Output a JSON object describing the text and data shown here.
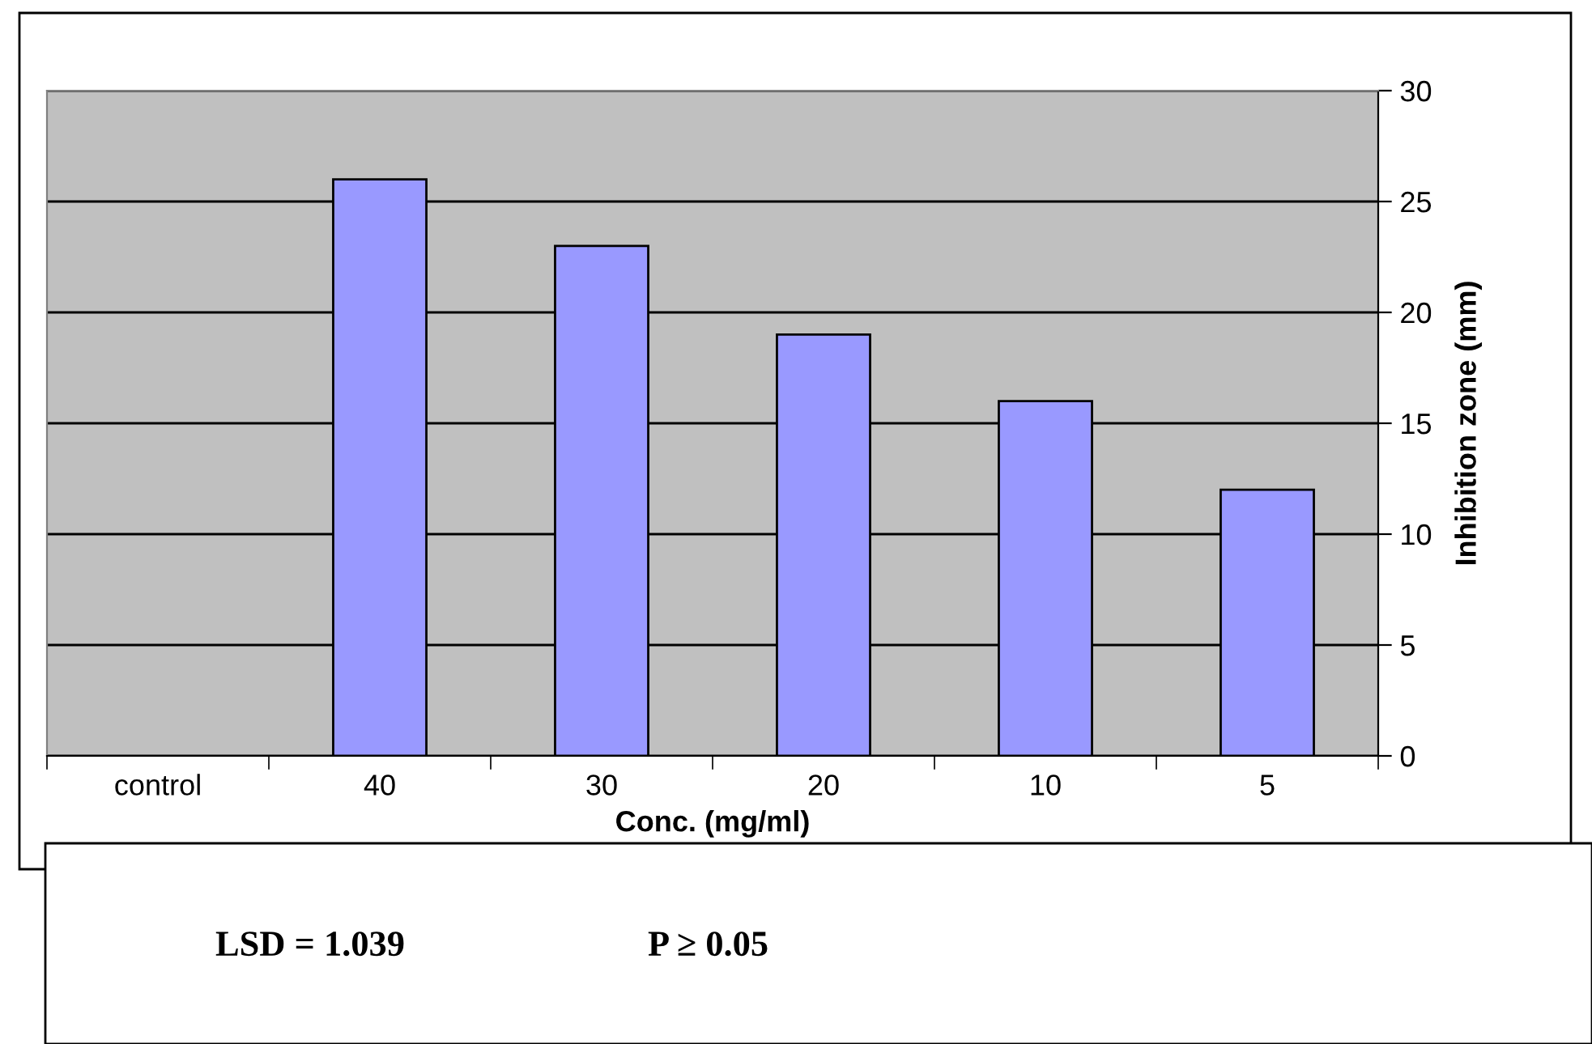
{
  "chart_data": {
    "type": "bar",
    "categories": [
      "control",
      "40",
      "30",
      "20",
      "10",
      "5"
    ],
    "values": [
      0,
      26,
      23,
      19,
      16,
      12
    ],
    "color": "#9999ff",
    "xlabel": "Conc. (mg/ml)",
    "ylabel": "Inhibition zone (mm)",
    "ylim": [
      0,
      30
    ],
    "yticks": [
      0,
      5,
      10,
      15,
      20,
      25,
      30
    ],
    "grid": "y",
    "annotations": [
      "LSD = 1.039",
      "P ≥ 0.05"
    ]
  }
}
